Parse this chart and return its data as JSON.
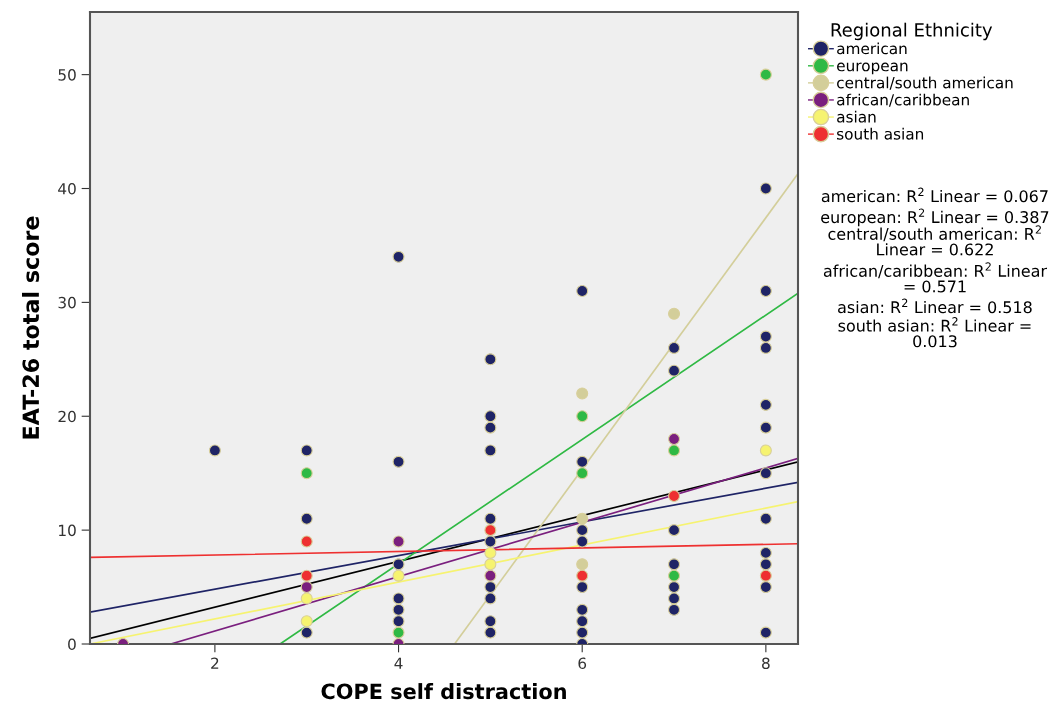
{
  "chart_data": {
    "type": "scatter",
    "xlabel": "COPE self distraction",
    "ylabel": "EAT-26 total score",
    "legend_title": "Regional Ethnicity",
    "legend": "right",
    "grid": false,
    "marker": "circle",
    "xlim": [
      0.64,
      8.35
    ],
    "ylim": [
      0,
      55.5
    ],
    "xticks": [
      2,
      4,
      6,
      8
    ],
    "yticks": [
      0,
      10,
      20,
      30,
      40,
      50
    ],
    "series": [
      {
        "name": "american",
        "color": "#1f2466",
        "x": [
          2,
          3,
          3,
          3,
          4,
          4,
          4,
          4,
          4,
          4,
          5,
          5,
          5,
          5,
          5,
          5,
          5,
          5,
          5,
          5,
          6,
          6,
          6,
          6,
          6,
          6,
          6,
          6,
          6,
          7,
          7,
          7,
          7,
          7,
          7,
          7,
          8,
          8,
          8,
          8,
          8,
          8,
          8,
          8,
          8,
          8,
          8,
          8
        ],
        "values": [
          17,
          17,
          11,
          1,
          34,
          16,
          7,
          4,
          3,
          2,
          25,
          20,
          19,
          17,
          11,
          9,
          5,
          4,
          2,
          1,
          31,
          16,
          10,
          9,
          5,
          3,
          2,
          1,
          0,
          26,
          24,
          10,
          7,
          5,
          4,
          3,
          40,
          31,
          27,
          26,
          21,
          19,
          15,
          11,
          8,
          7,
          5,
          1
        ]
      },
      {
        "name": "european",
        "color": "#2fb944",
        "x": [
          3,
          4,
          6,
          6,
          7,
          7,
          8
        ],
        "values": [
          15,
          1,
          20,
          15,
          17,
          6,
          50
        ]
      },
      {
        "name": "central/south american",
        "color": "#d3ce9a",
        "x": [
          6,
          6,
          6,
          7
        ],
        "values": [
          22,
          11,
          7,
          29
        ]
      },
      {
        "name": "african/caribbean",
        "color": "#7a1f7e",
        "x": [
          1,
          3,
          4,
          4,
          5,
          7
        ],
        "values": [
          0,
          5,
          9,
          0,
          6,
          18
        ]
      },
      {
        "name": "asian",
        "color": "#f6f370",
        "x": [
          3,
          3,
          4,
          5,
          5,
          8
        ],
        "values": [
          4,
          2,
          6,
          8,
          7,
          17
        ]
      },
      {
        "name": "south asian",
        "color": "#ee3030",
        "x": [
          3,
          3,
          5,
          6,
          7,
          8
        ],
        "values": [
          9,
          6,
          10,
          6,
          13,
          6
        ]
      },
      {
        "type": "line",
        "marker": "none",
        "color": "#000000",
        "x": [
          0.64,
          8.35
        ],
        "values": [
          0.5,
          16
        ]
      },
      {
        "type": "line",
        "marker": "none",
        "color": "#1f2466",
        "x": [
          0.64,
          8.35
        ],
        "values": [
          2.8,
          14.2
        ]
      },
      {
        "type": "line",
        "marker": "none",
        "color": "#2fb944",
        "x": [
          2.71,
          8.35
        ],
        "values": [
          0,
          30.8
        ]
      },
      {
        "type": "line",
        "marker": "none",
        "color": "#d3ce9a",
        "x": [
          4.61,
          8.35
        ],
        "values": [
          0,
          41.3
        ]
      },
      {
        "type": "line",
        "marker": "none",
        "color": "#7a1f7e",
        "x": [
          1.52,
          8.35
        ],
        "values": [
          0,
          16.3
        ]
      },
      {
        "type": "line",
        "marker": "none",
        "color": "#f6f370",
        "x": [
          0.64,
          8.35
        ],
        "values": [
          0,
          12.5
        ]
      },
      {
        "type": "line",
        "marker": "none",
        "color": "#ee3030",
        "x": [
          0.64,
          8.35
        ],
        "values": [
          7.6,
          8.8
        ]
      }
    ],
    "annotations": [
      "american: R$^{2}$ Linear = 0.067",
      "european: R$^{2}$ Linear = 0.387",
      "central/south american: R$^{2}$\nLinear = 0.622",
      "african/caribbean: R$^{2}$ Linear\n= 0.571",
      "asian: R$^{2}$ Linear = 0.518",
      "south asian: R$^{2}$ Linear =\n0.013"
    ]
  }
}
